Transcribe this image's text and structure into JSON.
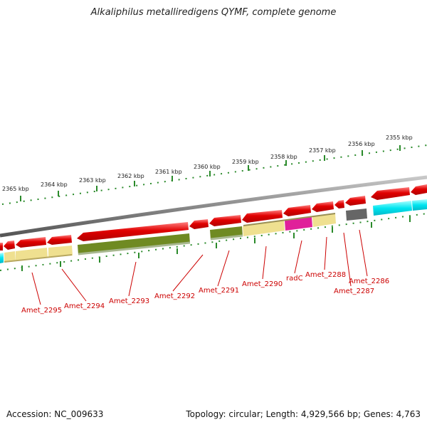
{
  "title": "Alkaliphilus metalliredigens QYMF, complete genome",
  "footer": {
    "accession": "Accession: NC_009633",
    "summary": "Topology: circular; Length: 4,929,566 bp; Genes: 4,763"
  },
  "ruler": {
    "labels": [
      "2365 kbp",
      "2364 kbp",
      "2363 kbp",
      "2362 kbp",
      "2361 kbp",
      "2360 kbp",
      "2359 kbp",
      "2358 kbp",
      "2357 kbp",
      "2356 kbp",
      "2355 kbp"
    ]
  },
  "genes": [
    {
      "name": "Amet_2295"
    },
    {
      "name": "Amet_2294"
    },
    {
      "name": "Amet_2293"
    },
    {
      "name": "Amet_2292"
    },
    {
      "name": "Amet_2291"
    },
    {
      "name": "Amet_2290"
    },
    {
      "name": "radC"
    },
    {
      "name": "Amet_2288"
    },
    {
      "name": "Amet_2287"
    },
    {
      "name": "Amet_2286"
    }
  ],
  "colors": {
    "cds_arrow": "#e00000",
    "cog_tan": "#efe090",
    "cog_olive": "#6f8a22",
    "cog_magenta": "#e0209a",
    "cog_gray": "#666666",
    "cog_cyan": "#00e5f0",
    "ruler_ticks": "#2a8a2a",
    "backbone": "#8c8c8c"
  }
}
